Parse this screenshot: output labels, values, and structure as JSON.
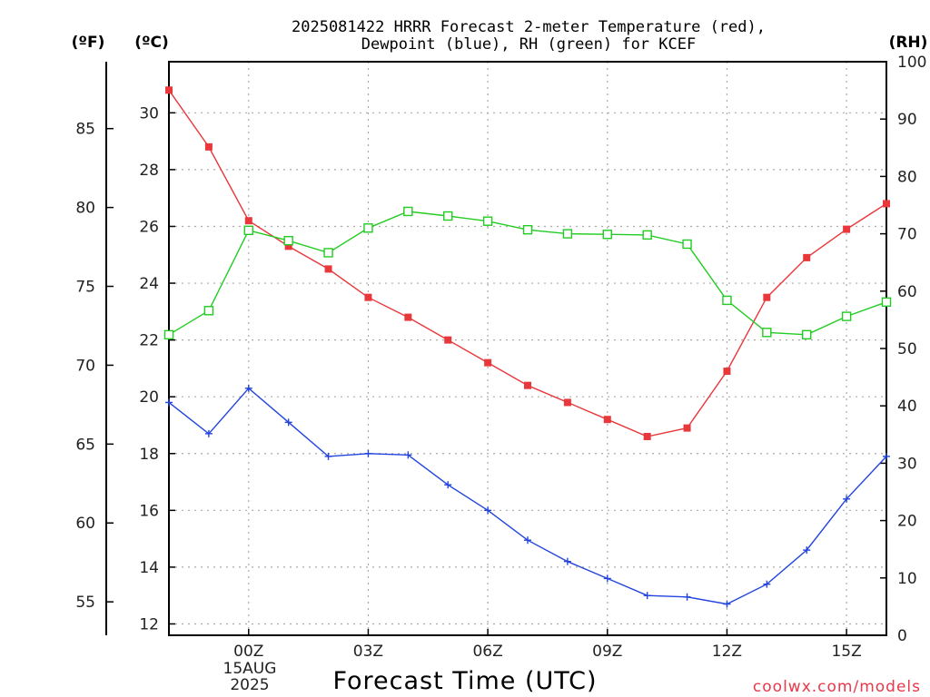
{
  "chart_data": {
    "type": "line",
    "title_line1": "2025081422 HRRR Forecast 2-meter Temperature (red),",
    "title_line2": "Dewpoint (blue), RH (green) for KCEF",
    "xlabel": "Forecast Time (UTC)",
    "credit": "coolwx.com/models",
    "unit_f": "(ºF)",
    "unit_c": "(ºC)",
    "unit_rh": "(RH)",
    "x_tick_labels": [
      "00Z",
      "03Z",
      "06Z",
      "09Z",
      "12Z",
      "15Z"
    ],
    "date_label_1": "15AUG",
    "date_label_2": "2025",
    "x_start_label": "2025-08-14 22Z",
    "ylim_c": [
      11.6,
      31.8
    ],
    "ylim_rh": [
      0,
      100
    ],
    "f_ticks": [
      55,
      60,
      65,
      70,
      75,
      80,
      85
    ],
    "c_ticks": [
      12,
      14,
      16,
      18,
      20,
      22,
      24,
      26,
      28,
      30
    ],
    "rh_ticks": [
      0,
      10,
      20,
      30,
      40,
      50,
      60,
      70,
      80,
      90,
      100
    ],
    "series": [
      {
        "name": "Temperature",
        "color": "#e8383c",
        "axis": "c",
        "marker": "filled-square",
        "values": [
          30.8,
          28.8,
          26.2,
          25.3,
          24.5,
          23.5,
          22.8,
          22.0,
          21.2,
          20.4,
          19.8,
          19.2,
          18.6,
          18.9,
          20.9,
          23.5,
          24.9,
          25.9,
          26.8
        ]
      },
      {
        "name": "Dewpoint",
        "color": "#2244dd",
        "axis": "c",
        "marker": "plus",
        "values": [
          19.8,
          18.7,
          20.3,
          19.1,
          17.9,
          18.0,
          17.95,
          16.9,
          16.0,
          14.95,
          14.2,
          13.6,
          13.0,
          12.95,
          12.7,
          13.4,
          14.6,
          16.4,
          17.9
        ]
      },
      {
        "name": "RH",
        "color": "#22cc22",
        "axis": "rh",
        "marker": "open-square",
        "values": [
          52.4,
          56.6,
          70.6,
          68.8,
          66.7,
          71.0,
          73.9,
          73.1,
          72.2,
          70.7,
          70.0,
          69.9,
          69.8,
          68.2,
          58.4,
          52.8,
          52.4,
          55.6,
          58.1
        ]
      }
    ],
    "grid": true
  }
}
